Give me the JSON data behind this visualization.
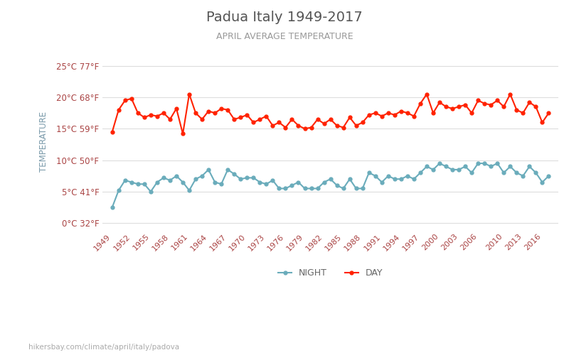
{
  "title": "Padua Italy 1949-2017",
  "subtitle": "APRIL AVERAGE TEMPERATURE",
  "ylabel": "TEMPERATURE",
  "watermark": "hikersbay.com/climate/april/italy/padova",
  "bg_color": "#ffffff",
  "grid_color": "#dddddd",
  "title_color": "#555555",
  "subtitle_color": "#999999",
  "ylabel_color": "#7a9aaa",
  "tick_color": "#aa4444",
  "years": [
    1949,
    1950,
    1951,
    1952,
    1953,
    1954,
    1955,
    1956,
    1957,
    1958,
    1959,
    1960,
    1961,
    1962,
    1963,
    1964,
    1965,
    1966,
    1967,
    1968,
    1969,
    1970,
    1971,
    1972,
    1973,
    1974,
    1975,
    1976,
    1977,
    1978,
    1979,
    1980,
    1981,
    1982,
    1983,
    1984,
    1985,
    1986,
    1987,
    1988,
    1989,
    1990,
    1991,
    1992,
    1993,
    1994,
    1995,
    1996,
    1997,
    1998,
    1999,
    2000,
    2001,
    2002,
    2003,
    2004,
    2005,
    2006,
    2007,
    2008,
    2009,
    2010,
    2011,
    2012,
    2013,
    2014,
    2015,
    2016,
    2017
  ],
  "day_temps": [
    14.5,
    18.0,
    19.5,
    19.8,
    17.5,
    16.8,
    17.2,
    17.0,
    17.5,
    16.5,
    18.2,
    14.2,
    20.5,
    17.5,
    16.5,
    17.8,
    17.5,
    18.2,
    18.0,
    16.5,
    16.8,
    17.2,
    16.0,
    16.5,
    17.0,
    15.5,
    16.0,
    15.2,
    16.5,
    15.5,
    15.0,
    15.2,
    16.5,
    15.8,
    16.5,
    15.5,
    15.2,
    16.8,
    15.5,
    16.0,
    17.2,
    17.5,
    17.0,
    17.5,
    17.2,
    17.8,
    17.5,
    17.0,
    19.0,
    20.5,
    17.5,
    19.2,
    18.5,
    18.2,
    18.5,
    18.8,
    17.5,
    19.5,
    19.0,
    18.8,
    19.5,
    18.5,
    20.5,
    18.0,
    17.5,
    19.2,
    18.5,
    16.0,
    17.5
  ],
  "night_temps": [
    2.5,
    5.2,
    6.8,
    6.5,
    6.2,
    6.2,
    5.0,
    6.5,
    7.2,
    6.8,
    7.5,
    6.5,
    5.2,
    7.0,
    7.5,
    8.5,
    6.5,
    6.2,
    8.5,
    7.8,
    7.0,
    7.2,
    7.2,
    6.5,
    6.2,
    6.8,
    5.5,
    5.5,
    6.0,
    6.5,
    5.5,
    5.5,
    5.5,
    6.5,
    7.0,
    6.0,
    5.5,
    7.0,
    5.5,
    5.5,
    8.0,
    7.5,
    6.5,
    7.5,
    7.0,
    7.0,
    7.5,
    7.0,
    8.0,
    9.0,
    8.5,
    9.5,
    9.0,
    8.5,
    8.5,
    9.0,
    8.0,
    9.5,
    9.5,
    9.0,
    9.5,
    8.0,
    9.0,
    8.0,
    7.5,
    9.0,
    8.0,
    6.5,
    7.5
  ],
  "day_color": "#ff2200",
  "night_color": "#6aacbb",
  "marker_size": 3.5,
  "line_width": 1.5,
  "ylim": [
    -1,
    27
  ],
  "yticks": [
    0,
    5,
    10,
    15,
    20,
    25
  ],
  "ytick_labels": [
    "0°C 32°F",
    "5°C 41°F",
    "10°C 50°F",
    "15°C 59°F",
    "20°C 68°F",
    "25°C 77°F"
  ],
  "xtick_years": [
    1949,
    1952,
    1955,
    1958,
    1961,
    1964,
    1967,
    1970,
    1973,
    1976,
    1979,
    1982,
    1985,
    1988,
    1991,
    1994,
    1997,
    2000,
    2003,
    2006,
    2010,
    2013,
    2016
  ]
}
